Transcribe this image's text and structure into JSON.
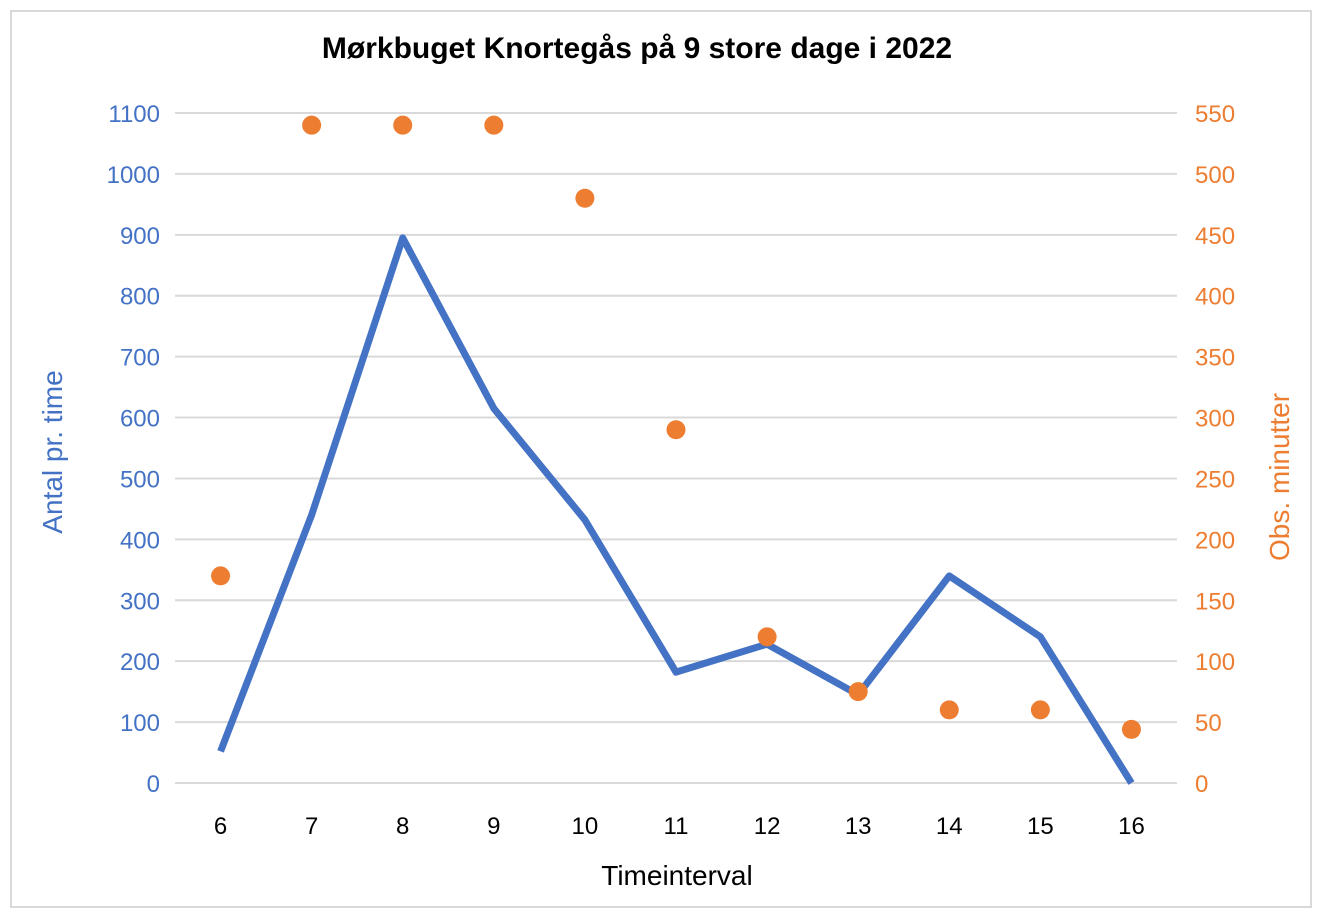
{
  "chart_data": {
    "type": "line",
    "title": "Mørkbuget Knortegås på 9 store dage i 2022",
    "xlabel": "Timeinterval",
    "ylabel": "Antal pr. time",
    "y2label": "Obs. minutter",
    "categories": [
      "6",
      "7",
      "8",
      "9",
      "10",
      "11",
      "12",
      "13",
      "14",
      "15",
      "16"
    ],
    "ylim": [
      0,
      1100
    ],
    "yticks": [
      "0",
      "100",
      "200",
      "300",
      "400",
      "500",
      "600",
      "700",
      "800",
      "900",
      "1000",
      "1100"
    ],
    "y2lim": [
      0,
      550
    ],
    "y2ticks": [
      "0",
      "50",
      "100",
      "150",
      "200",
      "250",
      "300",
      "350",
      "400",
      "450",
      "500",
      "550"
    ],
    "grid": true,
    "legend": "none",
    "series": [
      {
        "axis": "left",
        "type": "line",
        "color": "#4472c4",
        "values": [
          52,
          440,
          895,
          615,
          432,
          182,
          228,
          145,
          340,
          240,
          0
        ]
      },
      {
        "axis": "right",
        "type": "scatter",
        "color": "#ed7d31",
        "values": [
          170,
          540,
          540,
          540,
          480,
          290,
          120,
          75,
          60,
          60,
          44
        ]
      }
    ]
  }
}
